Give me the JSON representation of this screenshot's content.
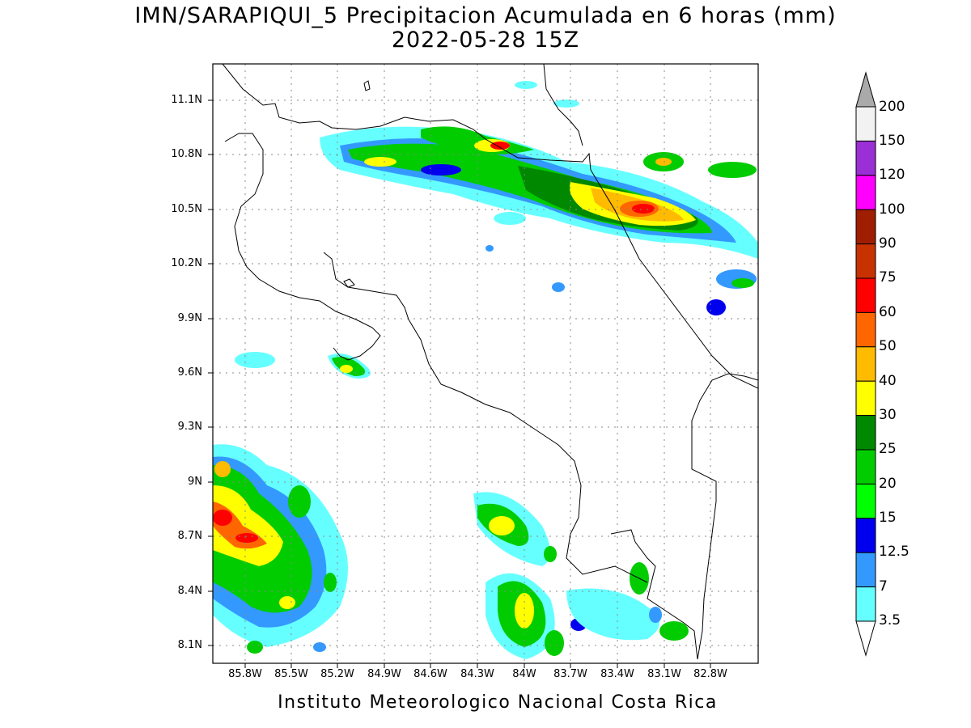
{
  "title_line1": "IMN/SARAPIQUI_5 Precipitacion Acumulada en 6 horas (mm)",
  "title_line2": "2022-05-28 15Z",
  "footer": "Instituto Meteorologico Nacional Costa Rica",
  "lon_ticks": [
    "85.8W",
    "85.5W",
    "85.2W",
    "84.9W",
    "84.6W",
    "84.3W",
    "84W",
    "83.7W",
    "83.4W",
    "83.1W",
    "82.8W"
  ],
  "lat_ticks": [
    "11.1N",
    "10.8N",
    "10.5N",
    "10.2N",
    "9.9N",
    "9.6N",
    "9.3N",
    "9N",
    "8.7N",
    "8.4N",
    "8.1N"
  ],
  "colorbar": {
    "labels": [
      "200",
      "150",
      "120",
      "100",
      "90",
      "75",
      "60",
      "50",
      "40",
      "30",
      "25",
      "20",
      "15",
      "12.5",
      "7",
      "3.5"
    ],
    "colors": [
      "#f2f2f2",
      "#9a2fd6",
      "#ff00ff",
      "#a01e00",
      "#c83200",
      "#ff0000",
      "#ff6600",
      "#ffbb00",
      "#ffff00",
      "#008800",
      "#00cc00",
      "#00ff00",
      "#0000ee",
      "#3399ff",
      "#66ffff"
    ],
    "overflow_color": "#aaaaaa"
  }
}
